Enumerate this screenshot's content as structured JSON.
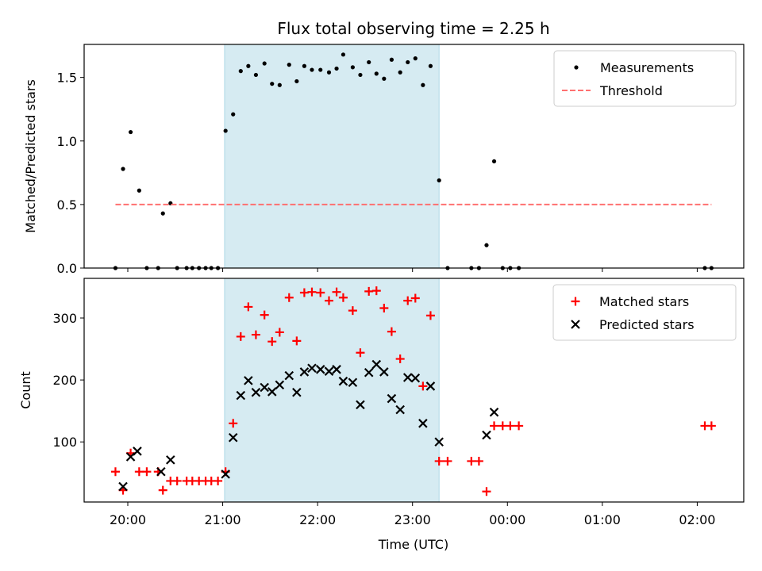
{
  "chart_data": {
    "type": "scatter",
    "title": "Flux total observing time = 2.25 h",
    "xlabel": "Time (UTC)",
    "x_ticks": [
      "20:00",
      "21:00",
      "22:00",
      "23:00",
      "00:00",
      "01:00",
      "02:00"
    ],
    "x_tick_hours": [
      20,
      21,
      22,
      23,
      24,
      25,
      26
    ],
    "xlim": [
      19.54,
      26.49
    ],
    "highlight_span": {
      "start": 21.02,
      "end": 23.28,
      "color": "#add8e6"
    },
    "panels": [
      {
        "ylabel": "Matched/Predicted stars",
        "ylim": [
          0,
          1.76
        ],
        "y_ticks": [
          0.0,
          0.5,
          1.0,
          1.5
        ],
        "y_tick_labels": [
          "0.0",
          "0.5",
          "1.0",
          "1.5"
        ],
        "legend_position": "top-right",
        "series": [
          {
            "name": "Measurements",
            "marker": "dot",
            "color": "#000000",
            "x": [
              19.87,
              19.95,
              20.03,
              20.12,
              20.2,
              20.32,
              20.37,
              20.45,
              20.52,
              20.62,
              20.68,
              20.75,
              20.82,
              20.88,
              20.95,
              21.03,
              21.11,
              21.19,
              21.27,
              21.35,
              21.44,
              21.52,
              21.6,
              21.7,
              21.78,
              21.86,
              21.94,
              22.03,
              22.12,
              22.2,
              22.27,
              22.37,
              22.45,
              22.54,
              22.62,
              22.7,
              22.78,
              22.87,
              22.95,
              23.03,
              23.11,
              23.19,
              23.28,
              23.37,
              23.62,
              23.7,
              23.78,
              23.86,
              23.95,
              24.03,
              24.12,
              26.08,
              26.15
            ],
            "y": [
              0.0,
              0.78,
              1.07,
              0.61,
              0.0,
              0.0,
              0.43,
              0.51,
              0.0,
              0.0,
              0.0,
              0.0,
              0.0,
              0.0,
              0.0,
              1.08,
              1.21,
              1.55,
              1.59,
              1.52,
              1.61,
              1.45,
              1.44,
              1.6,
              1.47,
              1.59,
              1.56,
              1.56,
              1.54,
              1.57,
              1.68,
              1.58,
              1.52,
              1.62,
              1.53,
              1.49,
              1.64,
              1.54,
              1.62,
              1.65,
              1.44,
              1.59,
              0.69,
              0.0,
              0.0,
              0.0,
              0.18,
              0.84,
              0.0,
              0.0,
              0.0,
              0.0,
              0.0
            ]
          },
          {
            "name": "Threshold",
            "marker": "dashed-line",
            "color": "#ff7070",
            "x": [
              19.87,
              26.15
            ],
            "y": [
              0.5,
              0.5
            ]
          }
        ]
      },
      {
        "ylabel": "Count",
        "ylim": [
          3,
          364
        ],
        "y_ticks": [
          100,
          200,
          300
        ],
        "y_tick_labels": [
          "100",
          "200",
          "300"
        ],
        "legend_position": "top-right",
        "series": [
          {
            "name": "Matched stars",
            "marker": "plus",
            "color": "#ff0000",
            "x": [
              19.87,
              19.95,
              20.03,
              20.12,
              20.2,
              20.32,
              20.37,
              20.45,
              20.52,
              20.62,
              20.68,
              20.75,
              20.82,
              20.88,
              20.95,
              21.03,
              21.11,
              21.19,
              21.27,
              21.35,
              21.44,
              21.52,
              21.6,
              21.7,
              21.78,
              21.86,
              21.94,
              22.03,
              22.12,
              22.2,
              22.27,
              22.37,
              22.45,
              22.54,
              22.62,
              22.7,
              22.78,
              22.87,
              22.95,
              23.03,
              23.11,
              23.19,
              23.28,
              23.37,
              23.62,
              23.7,
              23.78,
              23.86,
              23.95,
              24.03,
              24.12,
              26.08,
              26.15
            ],
            "y": [
              52,
              22,
              82,
              52,
              52,
              52,
              22,
              37,
              37,
              37,
              37,
              37,
              37,
              37,
              37,
              52,
              130,
              270,
              318,
              273,
              305,
              262,
              277,
              333,
              263,
              341,
              342,
              341,
              328,
              342,
              333,
              312,
              244,
              343,
              344,
              316,
              278,
              234,
              328,
              332,
              190,
              304,
              69,
              69,
              69,
              69,
              20,
              126,
              126,
              126,
              126,
              126,
              126
            ]
          },
          {
            "name": "Predicted stars",
            "marker": "x",
            "color": "#000000",
            "x": [
              19.95,
              20.03,
              20.1,
              20.35,
              20.45,
              21.03,
              21.11,
              21.19,
              21.27,
              21.35,
              21.44,
              21.52,
              21.6,
              21.7,
              21.78,
              21.86,
              21.94,
              22.03,
              22.12,
              22.2,
              22.27,
              22.37,
              22.45,
              22.54,
              22.62,
              22.7,
              22.78,
              22.87,
              22.95,
              23.03,
              23.11,
              23.19,
              23.28,
              23.78,
              23.86
            ],
            "y": [
              28,
              76,
              85,
              52,
              71,
              48,
              107,
              175,
              199,
              180,
              188,
              181,
              192,
              207,
              180,
              213,
              219,
              217,
              214,
              217,
              198,
              196,
              160,
              212,
              225,
              213,
              170,
              152,
              204,
              203,
              130,
              190,
              100,
              111,
              148
            ]
          }
        ]
      }
    ]
  }
}
